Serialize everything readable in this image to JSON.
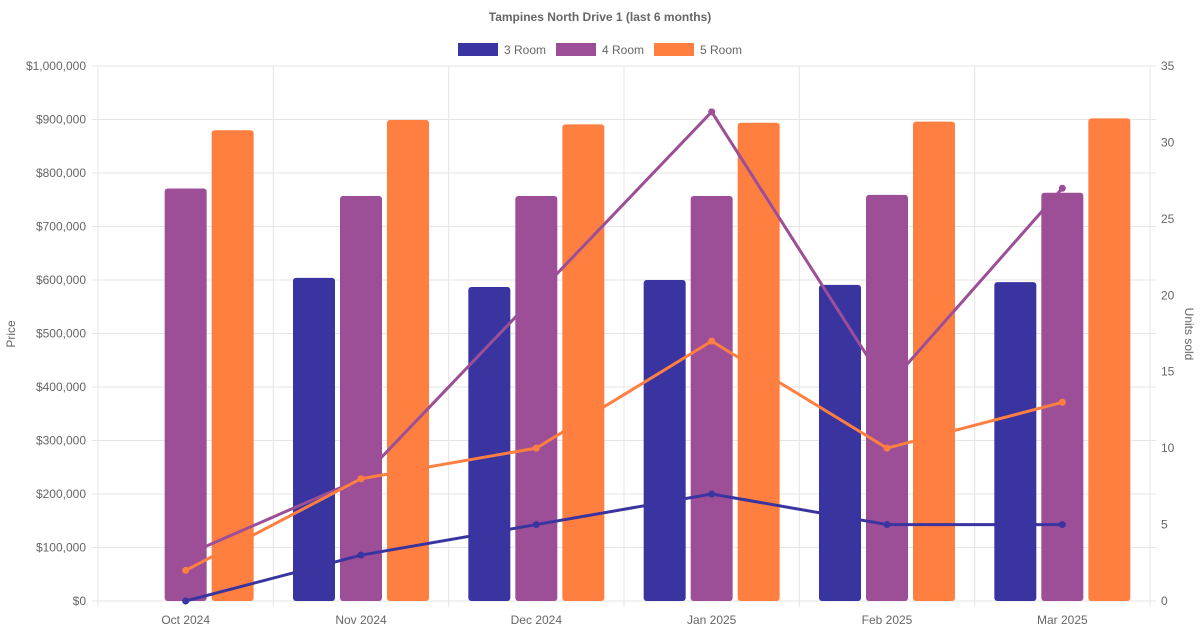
{
  "chart_data": {
    "type": "bar",
    "title": "Tampines North Drive 1 (last 6 months)",
    "categories": [
      "Oct 2024",
      "Nov 2024",
      "Dec 2024",
      "Jan 2025",
      "Feb 2025",
      "Mar 2025"
    ],
    "ylabel": "Price",
    "y2label": "Units sold",
    "ylim": [
      0,
      1000000
    ],
    "y2lim": [
      0,
      35
    ],
    "yticks": [
      "$0",
      "$100,000",
      "$200,000",
      "$300,000",
      "$400,000",
      "$500,000",
      "$600,000",
      "$700,000",
      "$800,000",
      "$900,000",
      "$1,000,000"
    ],
    "y2ticks": [
      "0",
      "5",
      "10",
      "15",
      "20",
      "25",
      "30",
      "35"
    ],
    "grid": true,
    "legend_position": "top",
    "series": [
      {
        "name": "3 Room",
        "color": "#3a34a0",
        "price_values": [
          null,
          604000,
          587000,
          600000,
          591000,
          596000
        ],
        "units_sold": [
          0,
          3,
          5,
          7,
          5,
          5
        ]
      },
      {
        "name": "4 Room",
        "color": "#9c4f96",
        "price_values": [
          771000,
          757000,
          757000,
          757000,
          759000,
          763000
        ],
        "units_sold": [
          3,
          8,
          20,
          32,
          14,
          27
        ]
      },
      {
        "name": "5 Room",
        "color": "#ff7f41",
        "price_values": [
          880000,
          899000,
          891000,
          894000,
          896000,
          902000
        ],
        "units_sold": [
          2,
          8,
          10,
          17,
          10,
          13
        ]
      }
    ]
  }
}
